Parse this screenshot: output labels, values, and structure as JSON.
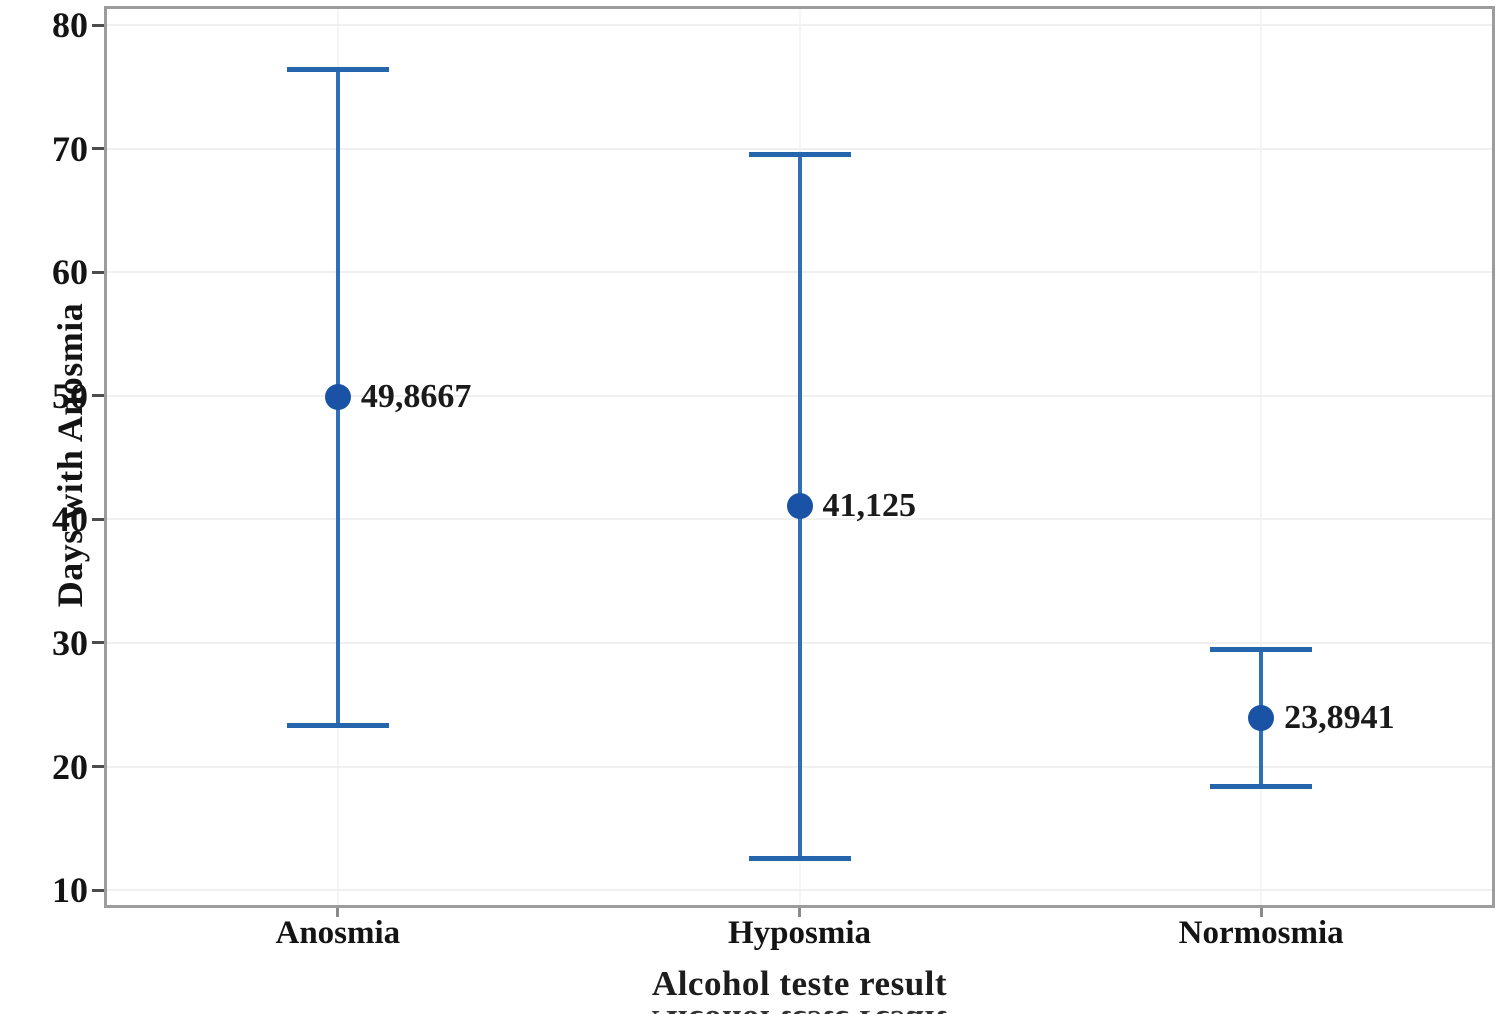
{
  "chart_data": {
    "type": "scatter",
    "subtype": "interval-plot-with-error-bars",
    "title": "",
    "xlabel": "Alcohol teste result",
    "ylabel": "Days with Anosmia",
    "categories": [
      "Anosmia",
      "Hyposmia",
      "Normosmia"
    ],
    "points": [
      {
        "category": "Anosmia",
        "mean": 49.8667,
        "label": "49,8667",
        "upper": 76.4,
        "lower": 23.3
      },
      {
        "category": "Hyposmia",
        "mean": 41.125,
        "label": "41,125",
        "upper": 69.5,
        "lower": 12.6
      },
      {
        "category": "Normosmia",
        "mean": 23.8941,
        "label": "23,8941",
        "upper": 29.5,
        "lower": 18.4
      }
    ],
    "yticks": [
      10,
      20,
      30,
      40,
      50,
      60,
      70,
      80
    ],
    "ylim": [
      8.8,
      81.3
    ],
    "grid": true,
    "legend": "none",
    "colors": {
      "marker": "#1a53a5",
      "error_line": "#2f6fb7",
      "error_cap": "#2565ae",
      "value_text": "#1a1a1a",
      "tick_text": "#141414",
      "axis_border": "#9c9c9c",
      "gridline_h": "#f0f0f0",
      "gridline_v": "#f5f5f5"
    }
  }
}
